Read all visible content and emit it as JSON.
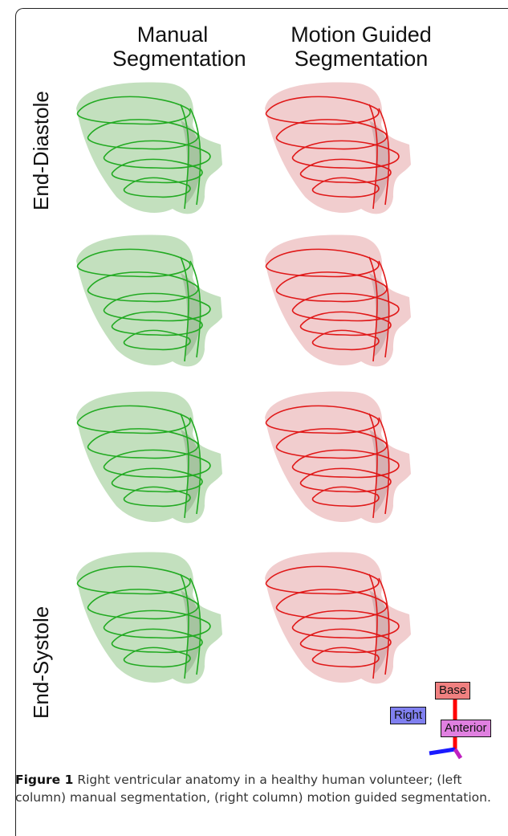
{
  "column_headers": {
    "left_line1": "Manual",
    "left_line2": "Segmentation",
    "right_line1": "Motion Guided",
    "right_line2": "Segmentation"
  },
  "row_labels": {
    "top": "End-Diastole",
    "bottom": "End-Systole"
  },
  "orientation_axes": {
    "base": "Base",
    "right": "Right",
    "anterior": "Anterior"
  },
  "caption": {
    "label": "Figure 1",
    "text": "Right ventricular anatomy in a healthy human volunteer; (left column) manual segmentation, (right column) motion guided segmentation."
  },
  "colors": {
    "manual_surface": "#b9dbb3",
    "manual_contour": "#22aa22",
    "motion_surface": "#efc4c6",
    "motion_contour": "#e01818",
    "base_box": "#f08080",
    "right_box": "#8080f0",
    "anterior_box": "#e080e0"
  },
  "panels": {
    "count_rows": 4,
    "columns": [
      "manual",
      "motion-guided"
    ]
  }
}
